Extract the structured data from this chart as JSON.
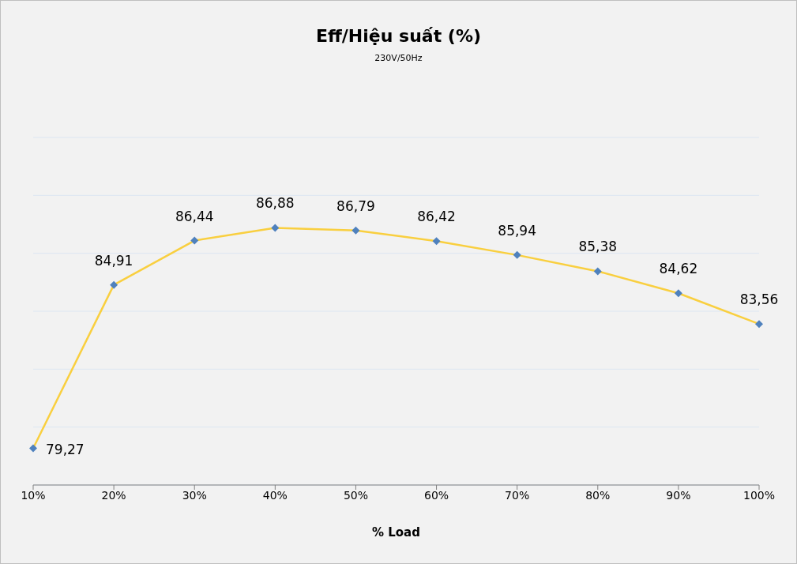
{
  "chart_data": {
    "type": "line",
    "title": "Eff/Hiệu suất (%)",
    "subtitle": "230V/50Hz",
    "xlabel": "% Load",
    "categories": [
      "10%",
      "20%",
      "30%",
      "40%",
      "50%",
      "60%",
      "70%",
      "80%",
      "90%",
      "100%"
    ],
    "series": [
      {
        "color": "#f9cf3f",
        "marker": "none",
        "values": [
          79.27,
          84.91,
          86.44,
          86.88,
          86.79,
          86.42,
          85.94,
          85.38,
          84.62,
          83.56
        ]
      },
      {
        "type": "scatter",
        "marker": "diamond",
        "color": "#4f81bd",
        "x": [
          "10%",
          "20%",
          "30%",
          "40%",
          "50%",
          "60%",
          "70%",
          "80%",
          "90%",
          "100%"
        ],
        "values": [
          79.27,
          84.91,
          86.44,
          86.88,
          86.79,
          86.42,
          85.94,
          85.38,
          84.62,
          83.56
        ],
        "value_labels": [
          "79,27",
          "84,91",
          "86,44",
          "86,88",
          "86,79",
          "86,42",
          "85,94",
          "85,38",
          "84,62",
          "83,56"
        ]
      }
    ],
    "ylim": [
      78,
      90
    ],
    "yticks": [
      {
        "value": 78,
        "label": null
      },
      {
        "value": 80,
        "label": null
      },
      {
        "value": 82,
        "label": null
      },
      {
        "value": 84,
        "label": null
      },
      {
        "value": 86,
        "label": null
      },
      {
        "value": 88,
        "label": null
      },
      {
        "value": 90,
        "label": null
      }
    ],
    "grid": "y",
    "line_style": "solid",
    "legend": false
  }
}
